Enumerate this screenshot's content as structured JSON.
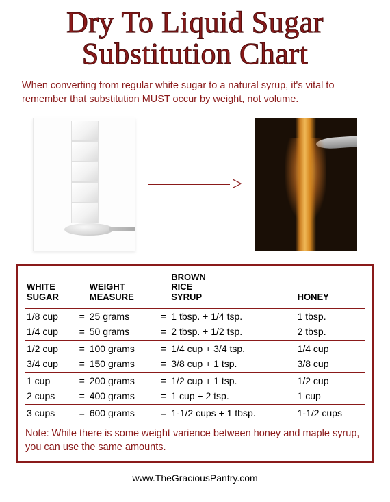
{
  "title_lines": [
    "Dry To Liquid Sugar",
    "Substitution Chart"
  ],
  "intro": "When converting from regular white sugar to a natural syrup, it's vital to remember that substitution MUST occur by weight, not volume.",
  "colors": {
    "accent": "#8a1a1a",
    "page_bg": "#ffffff",
    "text_black": "#000000"
  },
  "arrow_glyph": ">",
  "table": {
    "headers": {
      "white_sugar": "WHITE\nSUGAR",
      "weight_measure": "WEIGHT\nMEASURE",
      "brown_rice_syrup": "BROWN\nRICE\nSYRUP",
      "honey": "HONEY"
    },
    "groups": [
      [
        {
          "white": "1/8 cup",
          "weight": "25 grams",
          "brs": "1 tbsp. + 1/4 tsp.",
          "honey": "1 tbsp."
        },
        {
          "white": "1/4 cup",
          "weight": "50 grams",
          "brs": "2 tbsp. + 1/2 tsp.",
          "honey": "2 tbsp."
        }
      ],
      [
        {
          "white": "1/2 cup",
          "weight": "100 grams",
          "brs": "1/4 cup + 3/4 tsp.",
          "honey": "1/4 cup"
        },
        {
          "white": "3/4 cup",
          "weight": "150 grams",
          "brs": "3/8 cup + 1 tsp.",
          "honey": "3/8 cup"
        }
      ],
      [
        {
          "white": "1 cup",
          "weight": "200 grams",
          "brs": "1/2 cup + 1 tsp.",
          "honey": "1/2 cup"
        },
        {
          "white": "2 cups",
          "weight": "400 grams",
          "brs": "1 cup + 2 tsp.",
          "honey": "1 cup"
        }
      ],
      [
        {
          "white": "3 cups",
          "weight": "600 grams",
          "brs": "1-1/2 cups + 1 tbsp.",
          "honey": "1-1/2 cups"
        }
      ]
    ],
    "eq_sign": "="
  },
  "note": "Note: While there is some weight varience between honey and maple syrup, you can use the same amounts.",
  "footer": "www.TheGraciousPantry.com"
}
